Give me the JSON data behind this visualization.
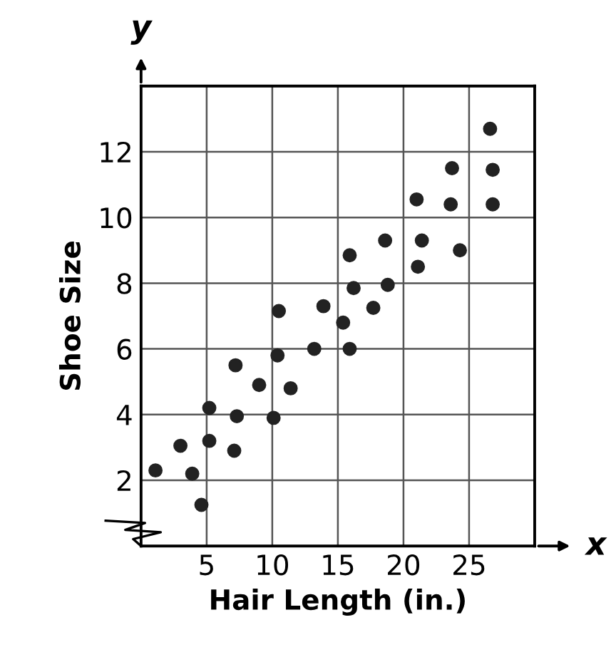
{
  "chart_data": {
    "type": "scatter",
    "xlabel": "Hair Length (in.)",
    "ylabel": "Shoe Size",
    "annotations": [
      "y",
      "x"
    ],
    "x": [
      1.1,
      3.0,
      3.9,
      4.6,
      5.2,
      5.2,
      7.1,
      7.3,
      7.2,
      9.0,
      10.1,
      10.4,
      10.5,
      11.4,
      13.2,
      13.9,
      15.4,
      15.9,
      16.2,
      15.9,
      17.7,
      18.8,
      18.6,
      21.1,
      21.4,
      21.0,
      23.6,
      23.7,
      24.3,
      26.6,
      26.8,
      26.8
    ],
    "values": [
      2.3,
      3.05,
      2.2,
      1.25,
      3.2,
      4.2,
      2.9,
      3.95,
      5.5,
      4.9,
      3.9,
      5.8,
      7.15,
      4.8,
      6.0,
      7.3,
      6.8,
      6.0,
      7.85,
      8.85,
      7.25,
      7.95,
      9.3,
      8.5,
      9.3,
      10.55,
      10.4,
      11.5,
      9.0,
      12.7,
      11.45,
      10.4
    ],
    "color": "#222222",
    "marker": "circle",
    "xlim": [
      0,
      30
    ],
    "ylim": [
      0,
      14
    ],
    "xticks": [
      5,
      10,
      15,
      20,
      25
    ],
    "yticks": [
      2,
      4,
      6,
      8,
      10,
      12
    ],
    "grid": true
  }
}
